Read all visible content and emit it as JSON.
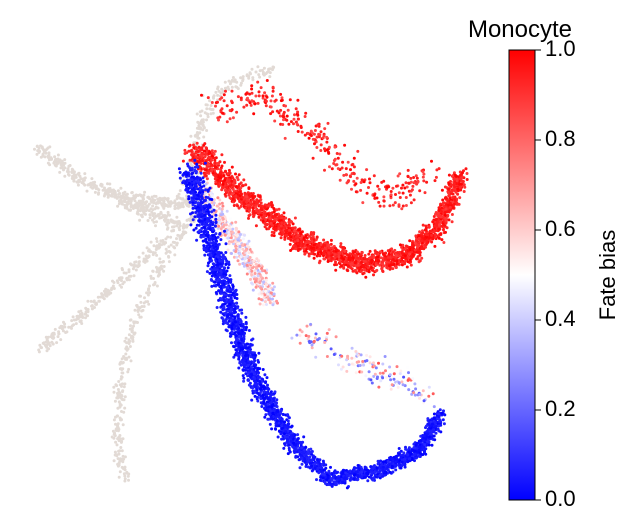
{
  "chart_data": {
    "type": "scatter",
    "title": "",
    "xlabel": "",
    "ylabel": "",
    "grid": false,
    "axes_visible": false,
    "background_points_color": "#e2dad5",
    "point_groups": [
      {
        "group": "background trajectory (unassigned)",
        "color_mode": "fixed",
        "approx_value": null
      },
      {
        "group": "monocyte-biased upper branch",
        "color_mode": "colorscale",
        "approx_value": 0.98
      },
      {
        "group": "transition zone",
        "color_mode": "colorscale",
        "approx_value": 0.6
      },
      {
        "group": "non-monocyte lower branch",
        "color_mode": "colorscale",
        "approx_value": 0.03
      }
    ],
    "colorbar": {
      "title": "Monocyte",
      "label": "Fate bias",
      "range": [
        0.0,
        1.0
      ],
      "ticks": [
        "0.0",
        "0.2",
        "0.4",
        "0.6",
        "0.8",
        "1.0"
      ],
      "tick_values": [
        0.0,
        0.2,
        0.4,
        0.6,
        0.8,
        1.0
      ],
      "colormap": "bwr",
      "color_low": "#0000ff",
      "color_mid": "#ffffff",
      "color_high": "#ff0000"
    }
  }
}
